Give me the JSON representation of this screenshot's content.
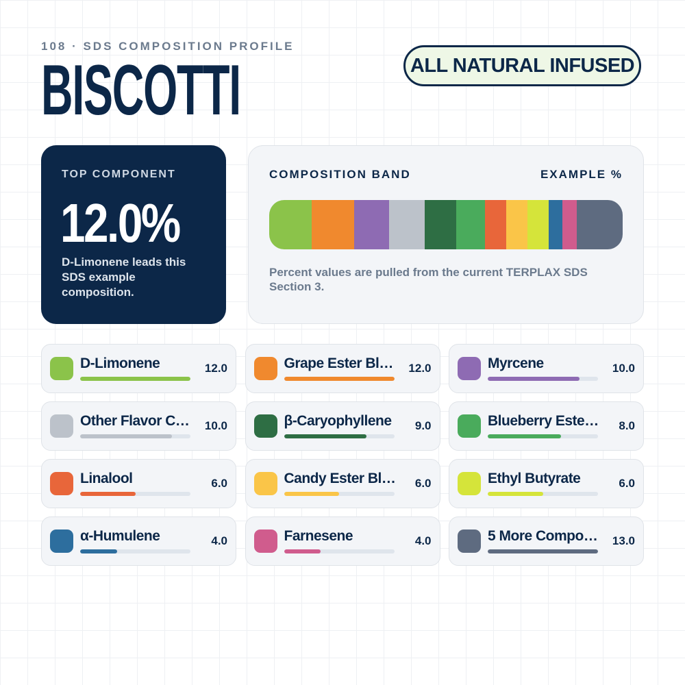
{
  "header": {
    "eyebrow": "108 · SDS COMPOSITION PROFILE",
    "title": "BISCOTTI",
    "badge": "ALL NATURAL INFUSED"
  },
  "top": {
    "label": "TOP COMPONENT",
    "value": "12.0%",
    "caption": "D-Limonene leads this SDS example composition."
  },
  "band": {
    "title": "COMPOSITION BAND",
    "unit_label": "EXAMPLE %",
    "note": "Percent values are pulled from the current TERPLAX SDS Section 3."
  },
  "items": [
    {
      "name": "D-Limonene",
      "value": "12.0",
      "color": "#8bc34a"
    },
    {
      "name": "Grape Ester Bl…",
      "value": "12.0",
      "color": "#f0892e"
    },
    {
      "name": "Myrcene",
      "value": "10.0",
      "color": "#8e6bb3"
    },
    {
      "name": "Other Flavor C…",
      "value": "10.0",
      "color": "#bcc2ca"
    },
    {
      "name": "β-Caryophyllene",
      "value": "9.0",
      "color": "#2e6e44"
    },
    {
      "name": "Blueberry Este…",
      "value": "8.0",
      "color": "#4aab5c"
    },
    {
      "name": "Linalool",
      "value": "6.0",
      "color": "#e8663a"
    },
    {
      "name": "Candy Ester Bl…",
      "value": "6.0",
      "color": "#fac548"
    },
    {
      "name": "Ethyl Butyrate",
      "value": "6.0",
      "color": "#d5e43a"
    },
    {
      "name": "α-Humulene",
      "value": "4.0",
      "color": "#2d6e9e"
    },
    {
      "name": "Farnesene",
      "value": "4.0",
      "color": "#d05c8d"
    },
    {
      "name": "5 More Compo…",
      "value": "13.0",
      "color": "#5e6b80"
    }
  ]
}
